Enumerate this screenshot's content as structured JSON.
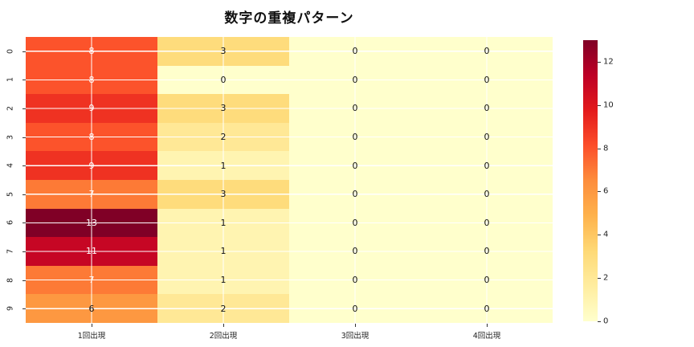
{
  "title": "数字の重複パターン",
  "chart_data": {
    "type": "heatmap",
    "title": "数字の重複パターン",
    "row_labels": [
      "0",
      "1",
      "2",
      "3",
      "4",
      "5",
      "6",
      "7",
      "8",
      "9"
    ],
    "col_labels": [
      "1回出現",
      "2回出現",
      "3回出現",
      "4回出現"
    ],
    "values": [
      [
        8,
        3,
        0,
        0
      ],
      [
        8,
        0,
        0,
        0
      ],
      [
        9,
        3,
        0,
        0
      ],
      [
        8,
        2,
        0,
        0
      ],
      [
        9,
        1,
        0,
        0
      ],
      [
        7,
        3,
        0,
        0
      ],
      [
        13,
        1,
        0,
        0
      ],
      [
        11,
        1,
        0,
        0
      ],
      [
        7,
        1,
        0,
        0
      ],
      [
        6,
        2,
        0,
        0
      ]
    ],
    "vmin": 0,
    "vmax": 13,
    "colormap": "YlOrRd",
    "annotated": true,
    "grid": "white gridlines at cell centers",
    "legend_position": "colorbar-right",
    "colorbar_ticks": [
      0,
      2,
      4,
      6,
      8,
      10,
      12
    ],
    "value_colors": {
      "0": "#ffffcc",
      "1": "#fff4b1",
      "2": "#ffe896",
      "3": "#fedc7c",
      "6": "#fd9841",
      "7": "#fd7a36",
      "8": "#fc532b",
      "9": "#ef3222",
      "11": "#c60624",
      "13": "#800026"
    },
    "annotation_colors": {
      "dark": "#111111",
      "light": "#ffffff"
    },
    "white_text_min_value": 7,
    "colormap_stops": [
      {
        "color": "#ffffcc",
        "pos": 0
      },
      {
        "color": "#ffeda0",
        "pos": 12.5
      },
      {
        "color": "#fed976",
        "pos": 25
      },
      {
        "color": "#feb24c",
        "pos": 37.5
      },
      {
        "color": "#fd8d3c",
        "pos": 50
      },
      {
        "color": "#fc4e2a",
        "pos": 62.5
      },
      {
        "color": "#e31a1c",
        "pos": 75
      },
      {
        "color": "#bd0026",
        "pos": 87.5
      },
      {
        "color": "#800026",
        "pos": 100
      }
    ]
  }
}
